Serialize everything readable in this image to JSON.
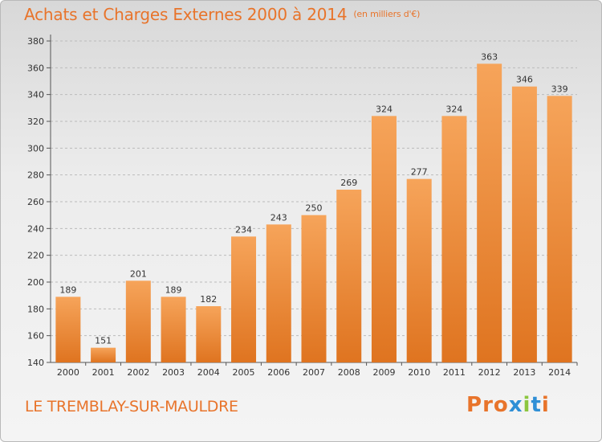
{
  "header": {
    "title": "Achats et Charges Externes 2000 à 2014",
    "unit": "(en milliers d'€)"
  },
  "footer": {
    "commune": "LE TREMBLAY-SUR-MAULDRE",
    "brand": "Proxiti"
  },
  "colors": {
    "accent": "#e8742b",
    "bar_light": "#f6a45a",
    "bar_dark": "#df7420",
    "grid": "#bbbbbb",
    "logo": [
      "#e8742b",
      "#e8742b",
      "#e8742b",
      "#2f8fd6",
      "#8cc63f",
      "#2f8fd6",
      "#e8742b"
    ]
  },
  "chart_data": {
    "type": "bar",
    "categories": [
      "2000",
      "2001",
      "2002",
      "2003",
      "2004",
      "2005",
      "2006",
      "2007",
      "2008",
      "2009",
      "2010",
      "2011",
      "2012",
      "2013",
      "2014"
    ],
    "values": [
      189,
      151,
      201,
      189,
      182,
      234,
      243,
      250,
      269,
      324,
      277,
      324,
      363,
      346,
      339
    ],
    "ylim": [
      140,
      380
    ],
    "yticks": [
      140,
      160,
      180,
      200,
      220,
      240,
      260,
      280,
      300,
      320,
      340,
      360,
      380
    ],
    "grid": "horizontal dashed",
    "data_labels": true
  }
}
